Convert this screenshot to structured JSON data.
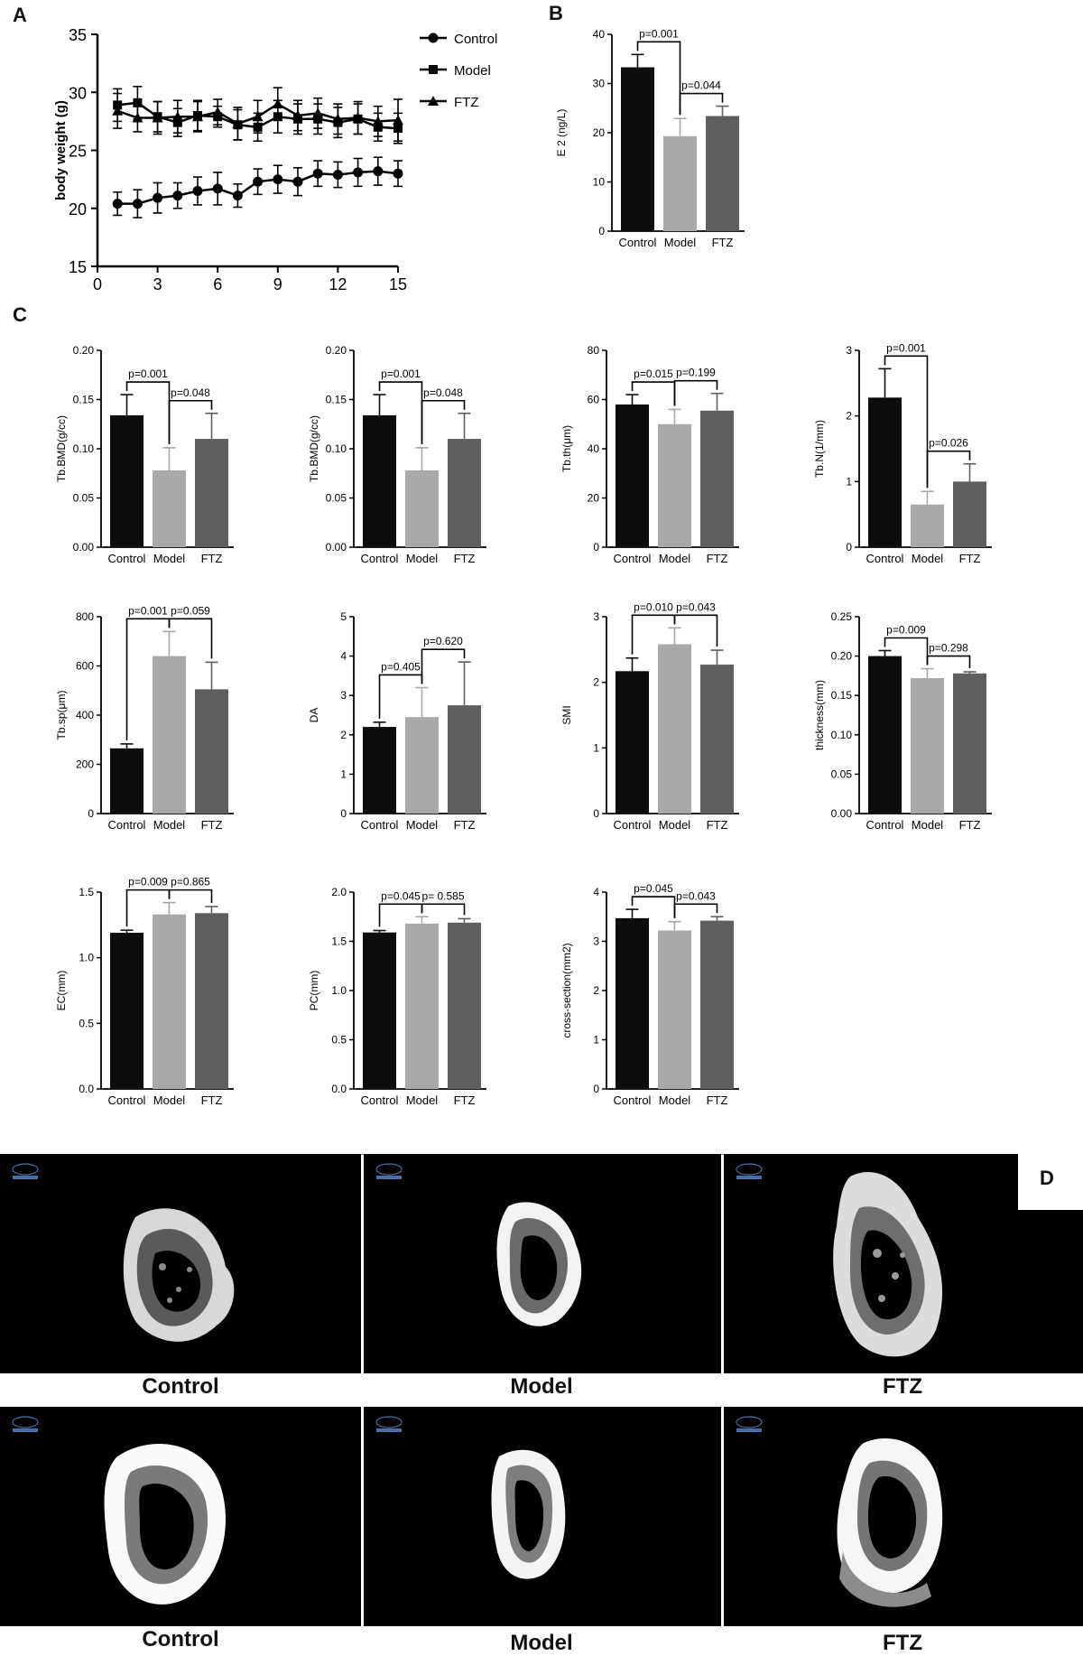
{
  "panels": {
    "A": "A",
    "B": "B",
    "C": "C",
    "D": "D"
  },
  "colors": {
    "control": "#0d0d0d",
    "model": "#a9a9a9",
    "ftz": "#5f5f5f"
  },
  "chart_data": [
    {
      "id": "A",
      "type": "line",
      "title": "",
      "xlabel": "",
      "ylabel": "body weight (g)",
      "xlim": [
        0,
        15
      ],
      "ylim": [
        15,
        35
      ],
      "xticks": [
        "0",
        "3",
        "6",
        "9",
        "12",
        "15"
      ],
      "yticks": [
        "15",
        "20",
        "25",
        "30",
        "35"
      ],
      "x": [
        1,
        2,
        3,
        4,
        5,
        6,
        7,
        8,
        9,
        10,
        11,
        12,
        13,
        14,
        15
      ],
      "legend": {
        "position": "top-right"
      },
      "series": [
        {
          "name": "Control",
          "marker": "circle",
          "values": [
            20.4,
            20.4,
            20.9,
            21.1,
            21.5,
            21.7,
            21.1,
            22.3,
            22.5,
            22.3,
            23.0,
            22.9,
            23.1,
            23.2,
            23.0
          ],
          "err": [
            1.0,
            1.2,
            1.3,
            1.1,
            1.2,
            1.4,
            1.0,
            1.1,
            1.2,
            1.2,
            1.1,
            1.1,
            1.2,
            1.2,
            1.1
          ]
        },
        {
          "name": "Model",
          "marker": "square",
          "values": [
            28.9,
            29.1,
            27.9,
            27.4,
            28.0,
            27.9,
            27.2,
            27.0,
            27.9,
            27.7,
            27.7,
            27.4,
            27.7,
            27.0,
            26.9
          ],
          "err": [
            1.4,
            1.4,
            1.3,
            1.2,
            1.3,
            0.9,
            1.3,
            1.2,
            1.4,
            1.3,
            1.3,
            1.3,
            1.3,
            1.2,
            1.3
          ]
        },
        {
          "name": "FTZ",
          "marker": "triangle",
          "values": [
            28.4,
            27.8,
            27.8,
            27.9,
            27.9,
            28.3,
            27.3,
            27.9,
            29.0,
            28.0,
            28.2,
            27.7,
            27.8,
            27.5,
            27.6
          ],
          "err": [
            1.5,
            1.2,
            1.4,
            1.4,
            1.3,
            1.1,
            1.4,
            1.4,
            1.4,
            1.3,
            1.3,
            1.3,
            1.4,
            1.3,
            1.8
          ]
        }
      ]
    },
    {
      "id": "B",
      "type": "bar",
      "ylabel": "E 2 (ng/L)",
      "ylim": [
        0,
        40
      ],
      "yticks": [
        "0",
        "10",
        "20",
        "30",
        "40"
      ],
      "categories": [
        "Control",
        "Model",
        "FTZ"
      ],
      "values": [
        33.3,
        19.3,
        23.4
      ],
      "err": [
        2.6,
        3.6,
        2.0
      ],
      "annotations": [
        {
          "text": "p=0.001",
          "from": 0,
          "to": 1
        },
        {
          "text": "p=0.044",
          "from": 1,
          "to": 2
        }
      ]
    },
    {
      "id": "C1",
      "type": "bar",
      "ylabel": "Tb.BMD(g/cc)",
      "ylim": [
        0,
        0.2
      ],
      "yticks": [
        "0.00",
        "0.05",
        "0.10",
        "0.15",
        "0.20"
      ],
      "categories": [
        "Control",
        "Model",
        "FTZ"
      ],
      "values": [
        0.134,
        0.078,
        0.11
      ],
      "err": [
        0.021,
        0.023,
        0.026
      ],
      "annotations": [
        {
          "text": "p=0.001",
          "from": 0,
          "to": 1
        },
        {
          "text": "p=0.048",
          "from": 1,
          "to": 2
        }
      ]
    },
    {
      "id": "C2",
      "type": "bar",
      "ylabel": "Tb.BMD(g/cc)",
      "ylim": [
        0,
        0.2
      ],
      "yticks": [
        "0.00",
        "0.05",
        "0.10",
        "0.15",
        "0.20"
      ],
      "categories": [
        "Control",
        "Model",
        "FTZ"
      ],
      "values": [
        0.134,
        0.078,
        0.11
      ],
      "err": [
        0.021,
        0.023,
        0.026
      ],
      "annotations": [
        {
          "text": "p=0.001",
          "from": 0,
          "to": 1
        },
        {
          "text": "p=0.048",
          "from": 1,
          "to": 2
        }
      ]
    },
    {
      "id": "C3",
      "type": "bar",
      "ylabel": "Tb.th(μm)",
      "ylim": [
        0,
        80
      ],
      "yticks": [
        "0",
        "20",
        "40",
        "60",
        "80"
      ],
      "categories": [
        "Control",
        "Model",
        "FTZ"
      ],
      "values": [
        58,
        50,
        55.5
      ],
      "err": [
        4,
        6,
        7
      ],
      "annotations": [
        {
          "text": "p=0.015",
          "from": 0,
          "to": 1
        },
        {
          "text": "p=0.199",
          "from": 1,
          "to": 2
        }
      ]
    },
    {
      "id": "C4",
      "type": "bar",
      "ylabel": "Tb.N(1/mm)",
      "ylim": [
        0,
        3
      ],
      "yticks": [
        "0",
        "1",
        "2",
        "3"
      ],
      "categories": [
        "Control",
        "Model",
        "FTZ"
      ],
      "values": [
        2.28,
        0.65,
        1.0
      ],
      "err": [
        0.44,
        0.2,
        0.27
      ],
      "annotations": [
        {
          "text": "p=0.001",
          "from": 0,
          "to": 1
        },
        {
          "text": "p=0.026",
          "from": 1,
          "to": 2
        }
      ]
    },
    {
      "id": "C5",
      "type": "bar",
      "ylabel": "Tb.sp(μm)",
      "ylim": [
        0,
        800
      ],
      "yticks": [
        "0",
        "200",
        "400",
        "600",
        "800"
      ],
      "categories": [
        "Control",
        "Model",
        "FTZ"
      ],
      "values": [
        265,
        640,
        505
      ],
      "err": [
        18,
        100,
        110
      ],
      "annotations": [
        {
          "text": "p=0.001",
          "from": 0,
          "to": 1
        },
        {
          "text": "p=0.059",
          "from": 1,
          "to": 2
        }
      ]
    },
    {
      "id": "C6",
      "type": "bar",
      "ylabel": "DA",
      "ylim": [
        0,
        5
      ],
      "yticks": [
        "0",
        "1",
        "2",
        "3",
        "4",
        "5"
      ],
      "categories": [
        "Control",
        "Model",
        "FTZ"
      ],
      "values": [
        2.2,
        2.45,
        2.75
      ],
      "err": [
        0.12,
        0.75,
        1.1
      ],
      "annotations": [
        {
          "text": "p=0.405",
          "from": 0,
          "to": 1
        },
        {
          "text": "p=0.620",
          "from": 1,
          "to": 2
        }
      ]
    },
    {
      "id": "C7",
      "type": "bar",
      "ylabel": "SMI",
      "ylim": [
        0,
        3
      ],
      "yticks": [
        "0",
        "1",
        "2",
        "3"
      ],
      "categories": [
        "Control",
        "Model",
        "FTZ"
      ],
      "values": [
        2.17,
        2.58,
        2.27
      ],
      "err": [
        0.2,
        0.25,
        0.22
      ],
      "annotations": [
        {
          "text": "p=0.010",
          "from": 0,
          "to": 1
        },
        {
          "text": "p=0.043",
          "from": 1,
          "to": 2
        }
      ]
    },
    {
      "id": "C8",
      "type": "bar",
      "ylabel": "thickness(mm)",
      "ylim": [
        0,
        0.25
      ],
      "yticks": [
        "0.00",
        "0.05",
        "0.10",
        "0.15",
        "0.20",
        "0.25"
      ],
      "categories": [
        "Control",
        "Model",
        "FTZ"
      ],
      "values": [
        0.2,
        0.172,
        0.178
      ],
      "err": [
        0.007,
        0.012,
        0.002
      ],
      "annotations": [
        {
          "text": "p=0.009",
          "from": 0,
          "to": 1
        },
        {
          "text": "p=0.298",
          "from": 1,
          "to": 2
        }
      ]
    },
    {
      "id": "C9",
      "type": "bar",
      "ylabel": "EC(mm)",
      "ylim": [
        0,
        1.5
      ],
      "yticks": [
        "0.0",
        "0.5",
        "1.0",
        "1.5"
      ],
      "categories": [
        "Control",
        "Model",
        "FTZ"
      ],
      "values": [
        1.19,
        1.33,
        1.34
      ],
      "err": [
        0.02,
        0.09,
        0.05
      ],
      "annotations": [
        {
          "text": "p=0.009",
          "from": 0,
          "to": 1
        },
        {
          "text": "p=0.865",
          "from": 1,
          "to": 2
        }
      ]
    },
    {
      "id": "C10",
      "type": "bar",
      "ylabel": "PC(mm)",
      "ylim": [
        0,
        2.0
      ],
      "yticks": [
        "0.0",
        "0.5",
        "1.0",
        "1.5",
        "2.0"
      ],
      "categories": [
        "Control",
        "Model",
        "FTZ"
      ],
      "values": [
        1.59,
        1.68,
        1.69
      ],
      "err": [
        0.02,
        0.07,
        0.04
      ],
      "annotations": [
        {
          "text": "p=0.045",
          "from": 0,
          "to": 1
        },
        {
          "text": "p= 0.585",
          "from": 1,
          "to": 2
        }
      ]
    },
    {
      "id": "C11",
      "type": "bar",
      "ylabel": "cross-section(mm2)",
      "ylim": [
        0,
        4
      ],
      "yticks": [
        "0",
        "1",
        "2",
        "3",
        "4"
      ],
      "categories": [
        "Control",
        "Model",
        "FTZ"
      ],
      "values": [
        3.47,
        3.22,
        3.42
      ],
      "err": [
        0.18,
        0.18,
        0.08
      ],
      "annotations": [
        {
          "text": "p=0.045",
          "from": 0,
          "to": 1
        },
        {
          "text": "p=0.043",
          "from": 1,
          "to": 2
        }
      ]
    }
  ],
  "ct_images": {
    "labels_row1": [
      "Control",
      "Model",
      "FTZ"
    ],
    "labels_row2": [
      "Control",
      "Model",
      "FTZ"
    ]
  }
}
